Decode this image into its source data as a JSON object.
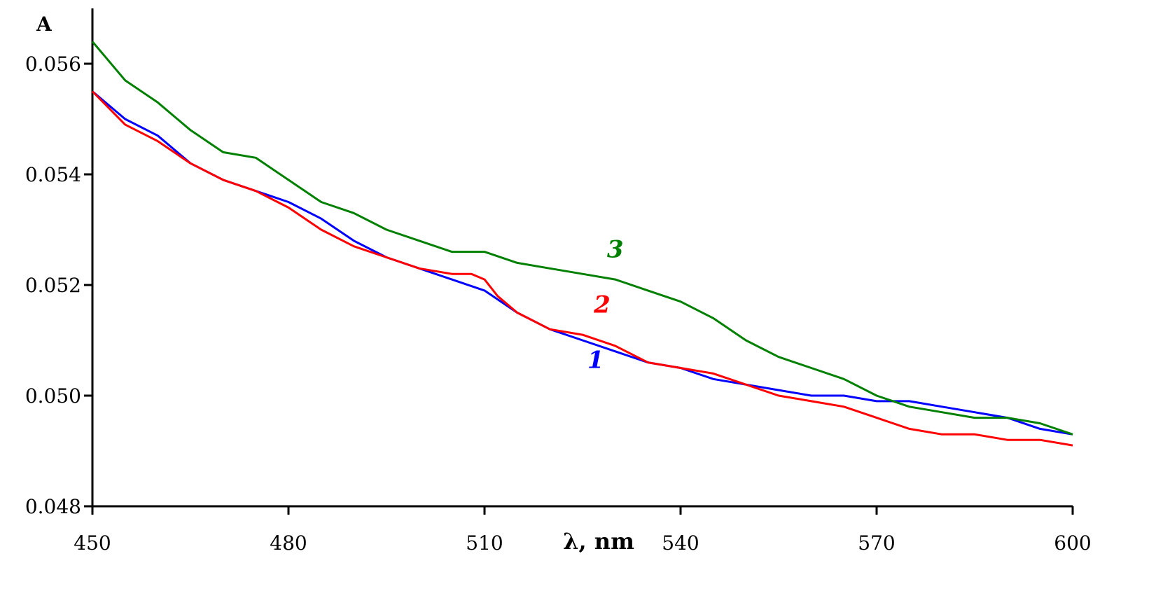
{
  "chart_data": {
    "type": "line",
    "title": "",
    "xlabel": "λ, nm",
    "ylabel": "A",
    "xlim": [
      450,
      600
    ],
    "ylim": [
      0.048,
      0.057
    ],
    "x_ticks": [
      "450",
      "480",
      "510",
      "540",
      "570",
      "600"
    ],
    "y_ticks": [
      "0.048",
      "0.050",
      "0.052",
      "0.054",
      "0.056"
    ],
    "grid": false,
    "legend": "none",
    "series": [
      {
        "name": "1",
        "color": "#0000ff",
        "points": [
          [
            450,
            0.0555
          ],
          [
            455,
            0.055
          ],
          [
            460,
            0.0547
          ],
          [
            465,
            0.0542
          ],
          [
            470,
            0.0539
          ],
          [
            475,
            0.0537
          ],
          [
            480,
            0.0535
          ],
          [
            485,
            0.0532
          ],
          [
            490,
            0.0528
          ],
          [
            495,
            0.0525
          ],
          [
            500,
            0.0523
          ],
          [
            505,
            0.0521
          ],
          [
            510,
            0.0519
          ],
          [
            515,
            0.0515
          ],
          [
            520,
            0.0512
          ],
          [
            525,
            0.051
          ],
          [
            530,
            0.0508
          ],
          [
            535,
            0.0506
          ],
          [
            540,
            0.0505
          ],
          [
            545,
            0.0503
          ],
          [
            550,
            0.0502
          ],
          [
            555,
            0.0501
          ],
          [
            560,
            0.05
          ],
          [
            565,
            0.05
          ],
          [
            570,
            0.0499
          ],
          [
            575,
            0.0499
          ],
          [
            580,
            0.0498
          ],
          [
            585,
            0.0497
          ],
          [
            590,
            0.0496
          ],
          [
            595,
            0.0494
          ],
          [
            600,
            0.0493
          ]
        ],
        "label_at": [
          527,
          0.0505
        ]
      },
      {
        "name": "2",
        "color": "#ff0000",
        "points": [
          [
            450,
            0.0555
          ],
          [
            455,
            0.0549
          ],
          [
            460,
            0.0546
          ],
          [
            465,
            0.0542
          ],
          [
            470,
            0.0539
          ],
          [
            475,
            0.0537
          ],
          [
            480,
            0.0534
          ],
          [
            485,
            0.053
          ],
          [
            490,
            0.0527
          ],
          [
            495,
            0.0525
          ],
          [
            500,
            0.0523
          ],
          [
            505,
            0.0522
          ],
          [
            508,
            0.0522
          ],
          [
            510,
            0.0521
          ],
          [
            512,
            0.0518
          ],
          [
            515,
            0.0515
          ],
          [
            520,
            0.0512
          ],
          [
            525,
            0.0511
          ],
          [
            530,
            0.0509
          ],
          [
            535,
            0.0506
          ],
          [
            540,
            0.0505
          ],
          [
            545,
            0.0504
          ],
          [
            550,
            0.0502
          ],
          [
            555,
            0.05
          ],
          [
            560,
            0.0499
          ],
          [
            565,
            0.0498
          ],
          [
            570,
            0.0496
          ],
          [
            575,
            0.0494
          ],
          [
            580,
            0.0493
          ],
          [
            585,
            0.0493
          ],
          [
            590,
            0.0492
          ],
          [
            595,
            0.0492
          ],
          [
            600,
            0.0491
          ]
        ],
        "label_at": [
          528,
          0.0515
        ]
      },
      {
        "name": "3",
        "color": "#008000",
        "points": [
          [
            450,
            0.0564
          ],
          [
            455,
            0.0557
          ],
          [
            460,
            0.0553
          ],
          [
            465,
            0.0548
          ],
          [
            470,
            0.0544
          ],
          [
            475,
            0.0543
          ],
          [
            480,
            0.0539
          ],
          [
            485,
            0.0535
          ],
          [
            490,
            0.0533
          ],
          [
            495,
            0.053
          ],
          [
            500,
            0.0528
          ],
          [
            505,
            0.0526
          ],
          [
            510,
            0.0526
          ],
          [
            515,
            0.0524
          ],
          [
            520,
            0.0523
          ],
          [
            525,
            0.0522
          ],
          [
            530,
            0.0521
          ],
          [
            535,
            0.0519
          ],
          [
            540,
            0.0517
          ],
          [
            545,
            0.0514
          ],
          [
            550,
            0.051
          ],
          [
            555,
            0.0507
          ],
          [
            560,
            0.0505
          ],
          [
            565,
            0.0503
          ],
          [
            570,
            0.05
          ],
          [
            575,
            0.0498
          ],
          [
            580,
            0.0497
          ],
          [
            585,
            0.0496
          ],
          [
            590,
            0.0496
          ],
          [
            595,
            0.0495
          ],
          [
            600,
            0.0493
          ]
        ],
        "label_at": [
          530,
          0.0525
        ]
      }
    ]
  }
}
